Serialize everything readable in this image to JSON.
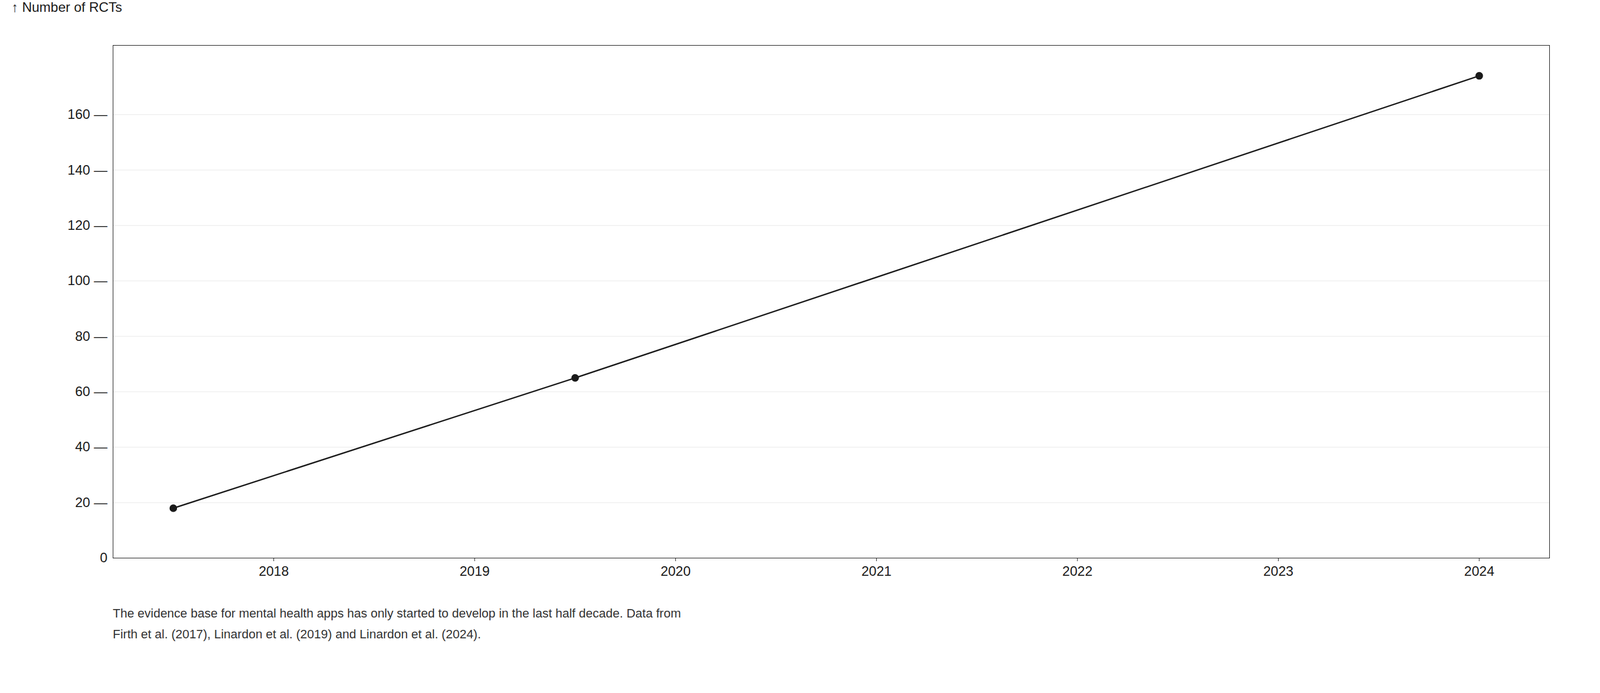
{
  "chart_data": {
    "type": "line",
    "ylabel": "↑ Number of RCTs",
    "caption": [
      "The evidence base for mental health apps has only started to develop in the last half decade. Data from",
      "Firth et al. (2017), Linardon et al. (2019) and Linardon et al. (2024)."
    ],
    "x": [
      2017.5,
      2019.5,
      2024.0
    ],
    "values": [
      18,
      65,
      174
    ],
    "color": "#1a1a1a",
    "marker": "circle",
    "xlim": [
      2017.2,
      2024.35
    ],
    "xticks": [
      2018,
      2019,
      2020,
      2021,
      2022,
      2023,
      2024
    ],
    "ylim": [
      0,
      185
    ],
    "yticks": [
      0,
      {
        "value": 20,
        "label": "20 —"
      },
      {
        "value": 40,
        "label": "40 —"
      },
      {
        "value": 60,
        "label": "60 —"
      },
      {
        "value": 80,
        "label": "80 —"
      },
      {
        "value": 100,
        "label": "100 —"
      },
      {
        "value": 120,
        "label": "120 —"
      },
      {
        "value": 140,
        "label": "140 —"
      },
      {
        "value": 160,
        "label": "160 —"
      }
    ],
    "grid": true
  }
}
